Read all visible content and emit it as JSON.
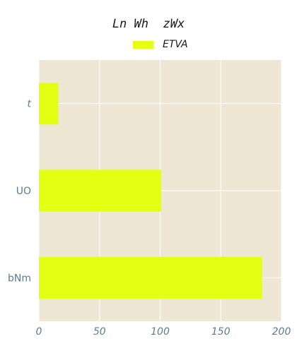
{
  "chart_data": {
    "type": "bar",
    "orientation": "horizontal",
    "title": "Ln Wh  zWx",
    "categories": [
      "bNm",
      "UO",
      "t"
    ],
    "series": [
      {
        "name": "ETVA",
        "values": [
          184,
          101,
          16
        ]
      }
    ],
    "xlim": [
      0,
      200
    ],
    "xticks": [
      "0",
      "50",
      "100",
      "150",
      "200"
    ],
    "grid": true,
    "legend": "top-center",
    "colors": {
      "bar": "#e5ff13",
      "plot_background": "#efe6d4",
      "grid": "#ffffff",
      "tick_text": "#5f7a8e"
    }
  }
}
